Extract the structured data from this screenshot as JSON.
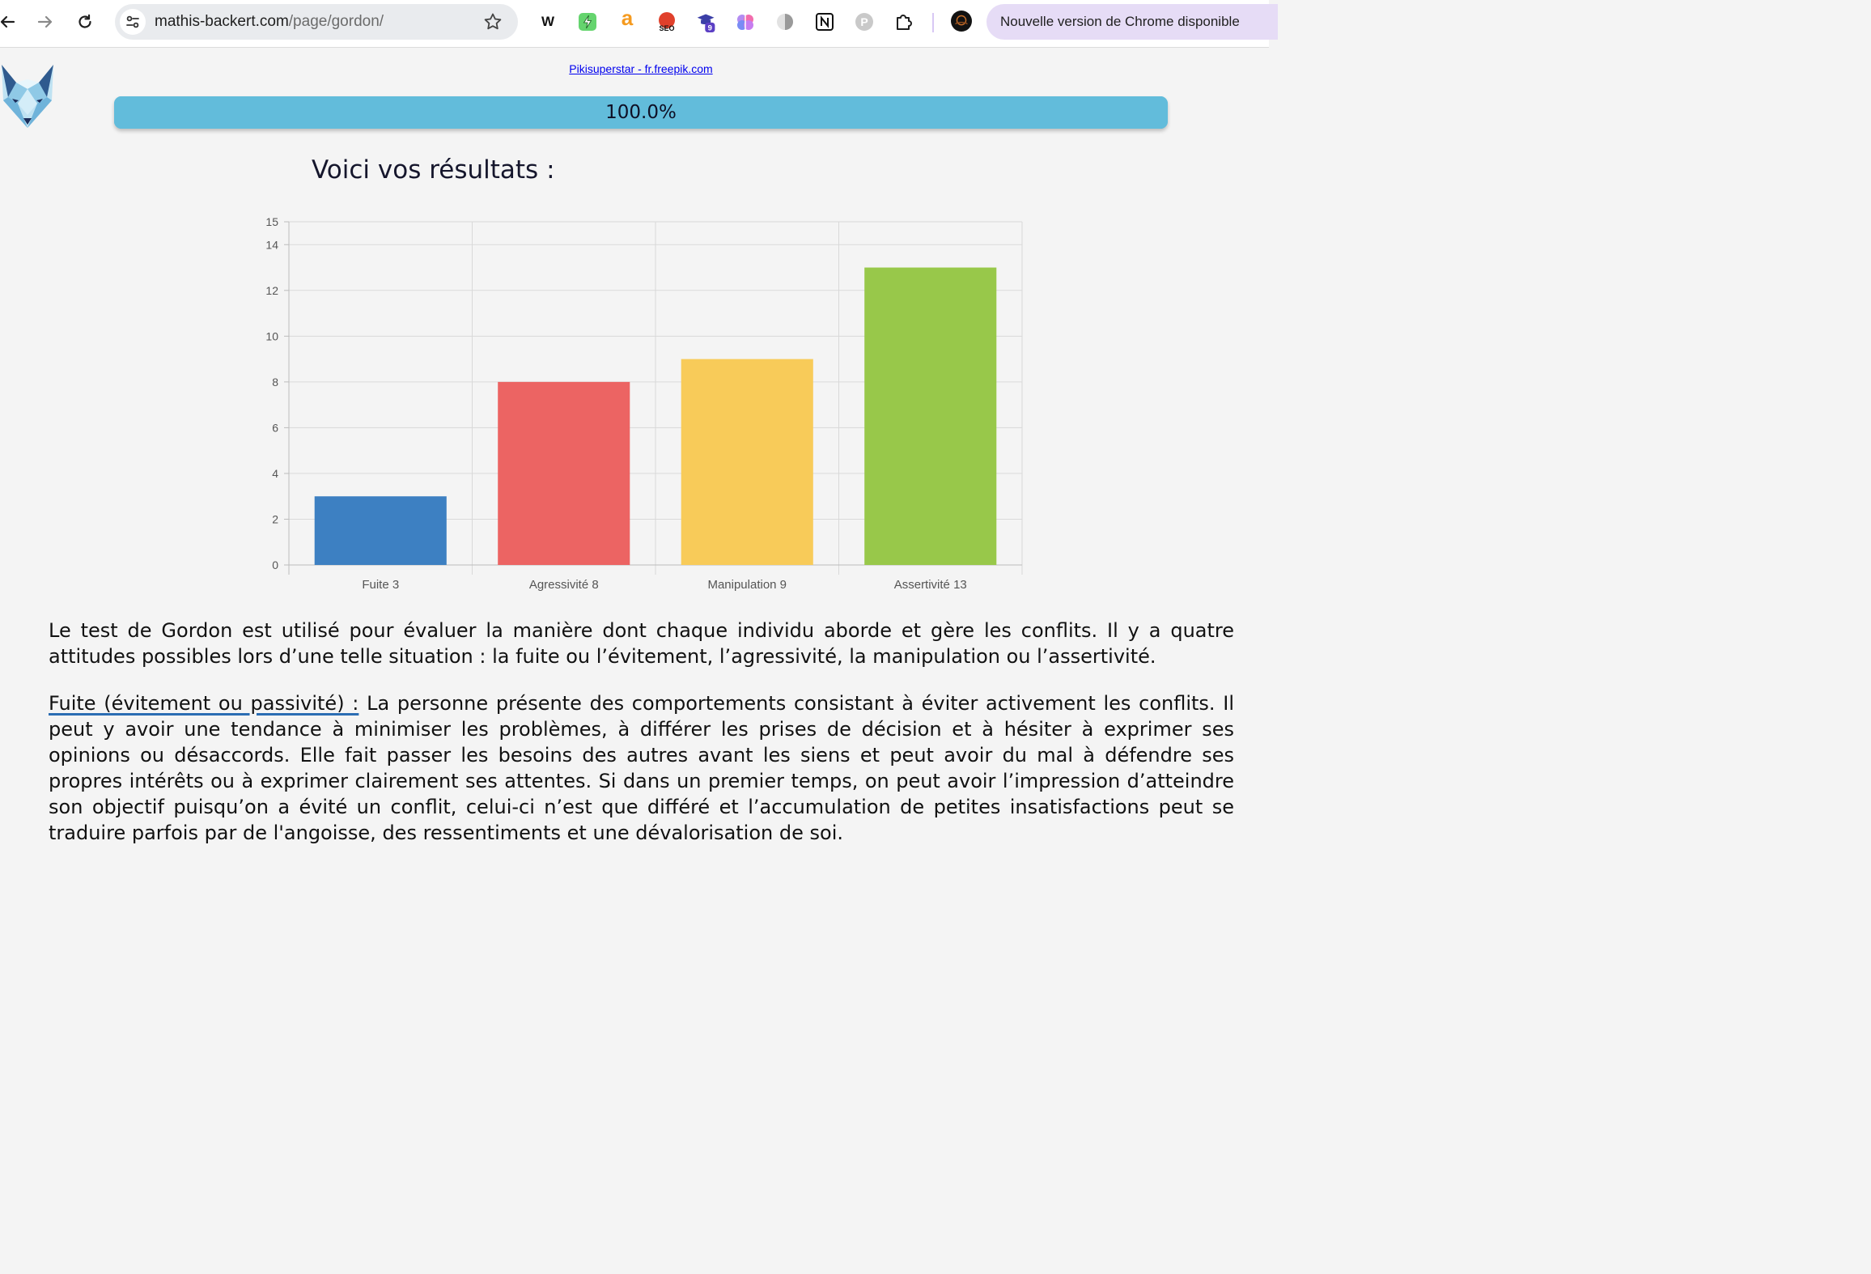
{
  "browser": {
    "url_host": "mathis-backert.com",
    "url_path": "/page/gordon/",
    "update_notice": "Nouvelle version de Chrome disponible",
    "extensions": [
      "wordtune-icon",
      "bolt-icon",
      "a-letter-icon",
      "seo-icon",
      "graduation-cap-icon",
      "brain-icon",
      "half-circle-icon",
      "notion-icon",
      "p-circle-icon",
      "puzzle-icon",
      "profile-avatar"
    ],
    "graduation_badge": "9",
    "seo_label": "SEO"
  },
  "page": {
    "credit_link": "Pikisuperstar - fr.freepik.com",
    "progress_label": "100.0%",
    "progress_fraction": 1.0,
    "results_title": "Voici vos résultats :",
    "intro_paragraph": "Le test de Gordon est utilisé pour évaluer la manière dont chaque individu aborde et gère les conflits. Il y a quatre attitudes possibles lors d’une telle situation : la fuite ou l’évitement, l’agressivité, la manipulation ou l’assertivité.",
    "fuite_heading": "Fuite (évitement ou passivité) :",
    "fuite_text": " La personne présente des comportements consistant à éviter activement les conflits. Il peut y avoir une tendance à minimiser les problèmes, à différer les prises de décision et à hésiter à exprimer ses opinions ou désaccords. Elle fait passer les besoins des autres avant les siens et peut avoir du mal à défendre ses propres intérêts ou à exprimer clairement ses attentes. Si dans un premier temps, on peut avoir l’impression d’atteindre son objectif puisqu’on a évité un conflit, celui-ci n’est que différé et l’accumulation de petites insatisfactions peut se traduire parfois par de l'angoisse, des ressentiments et une dévalorisation de soi."
  },
  "chart_data": {
    "type": "bar",
    "categories": [
      "Fuite 3",
      "Agressivité 8",
      "Manipulation 9",
      "Assertivité 13"
    ],
    "values": [
      3,
      8,
      9,
      13
    ],
    "colors": [
      "#3d80c2",
      "#ec6463",
      "#f8cb59",
      "#98c84a"
    ],
    "ylim": [
      0,
      15
    ],
    "yticks": [
      0,
      2,
      4,
      6,
      8,
      10,
      12,
      14,
      15
    ],
    "grid": true,
    "title": "",
    "xlabel": "",
    "ylabel": ""
  }
}
